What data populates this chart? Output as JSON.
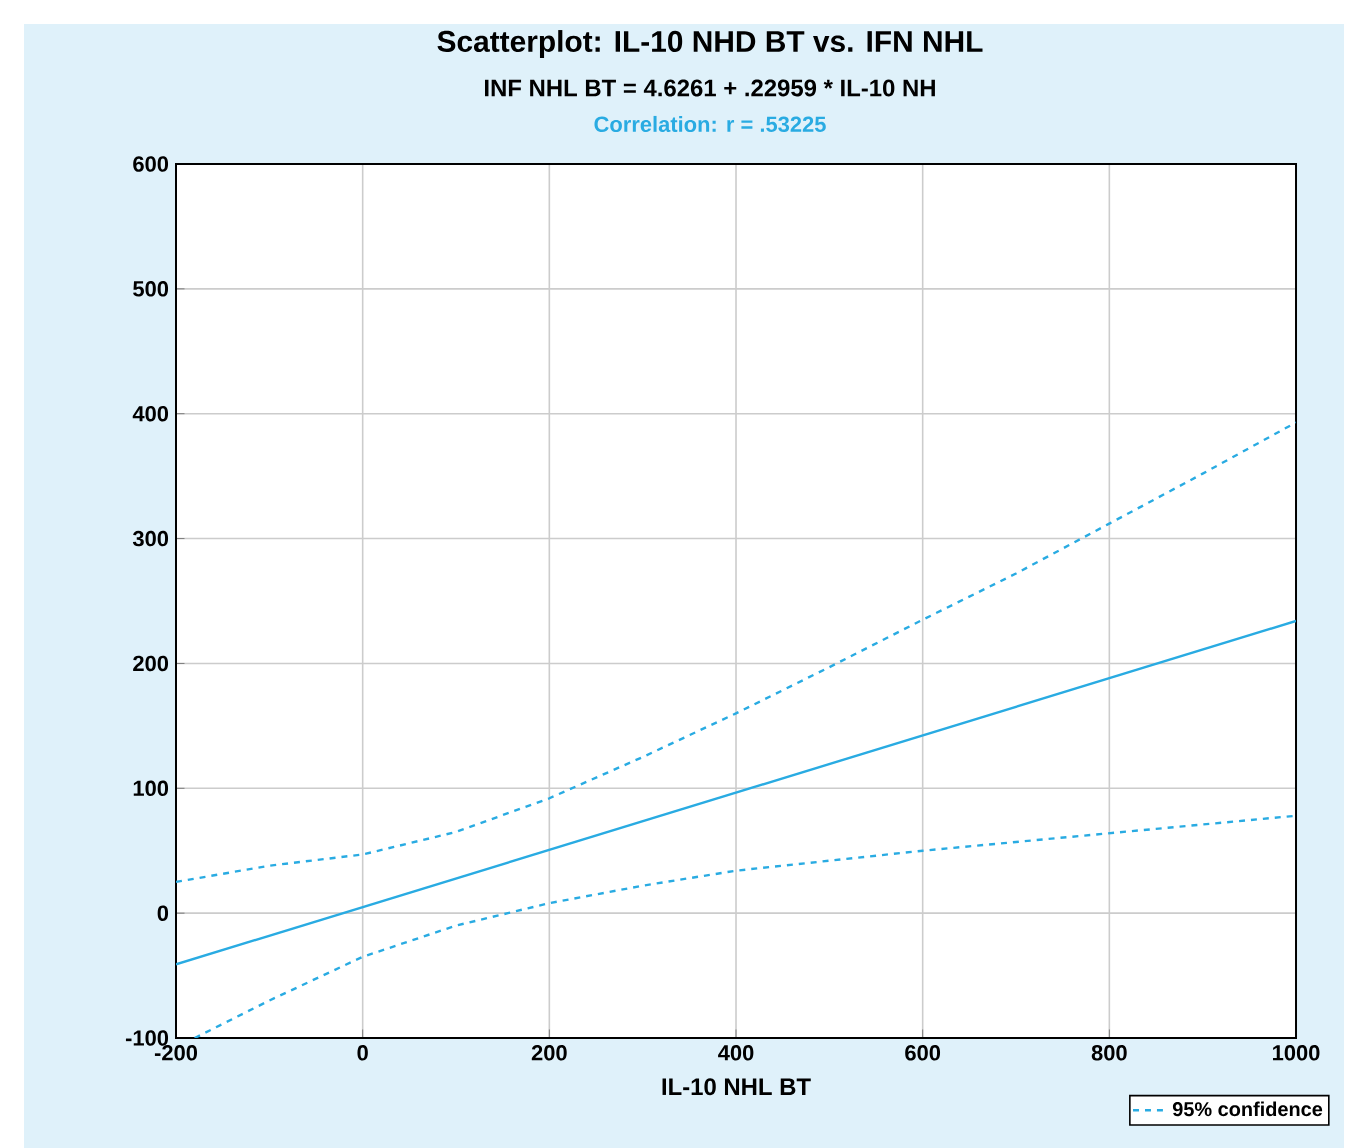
{
  "chart_data": {
    "type": "line",
    "title": "Scatterplot: IL-10 NHD BT vs. IFN NHL",
    "subtitle": "INF NHL BT = 4.6261 + .22959 * IL-10 NH",
    "annotations": [
      "Correlation: r = .53225"
    ],
    "xlabel": "IL-10 NHL BT",
    "xlim": [
      -200,
      1000
    ],
    "ylim": [
      -100,
      600
    ],
    "xticks": [
      -200,
      0,
      200,
      400,
      600,
      800,
      1000
    ],
    "yticks": [
      -100,
      0,
      100,
      200,
      300,
      400,
      500,
      600
    ],
    "grid": true,
    "legend": "bottom right",
    "series": [
      {
        "color": "#29abe2",
        "line_style": "solid",
        "x": [
          -200,
          1000
        ],
        "values": [
          -41,
          234
        ]
      },
      {
        "name": "95% confidence",
        "color": "#29abe2",
        "line_style": "dashed",
        "x": [
          -200,
          -100,
          0,
          100,
          200,
          300,
          400,
          500,
          600,
          700,
          800,
          900,
          1000
        ],
        "values": [
          25,
          38,
          47,
          65,
          92,
          125,
          160,
          197,
          235,
          272,
          312,
          352,
          393
        ]
      },
      {
        "color": "#29abe2",
        "line_style": "dashed",
        "x": [
          -180,
          -100,
          0,
          100,
          200,
          300,
          400,
          500,
          600,
          700,
          800,
          900,
          1000
        ],
        "values": [
          -100,
          -70,
          -35,
          -10,
          8,
          22,
          34,
          42,
          50,
          57,
          64,
          71,
          78
        ]
      }
    ]
  }
}
